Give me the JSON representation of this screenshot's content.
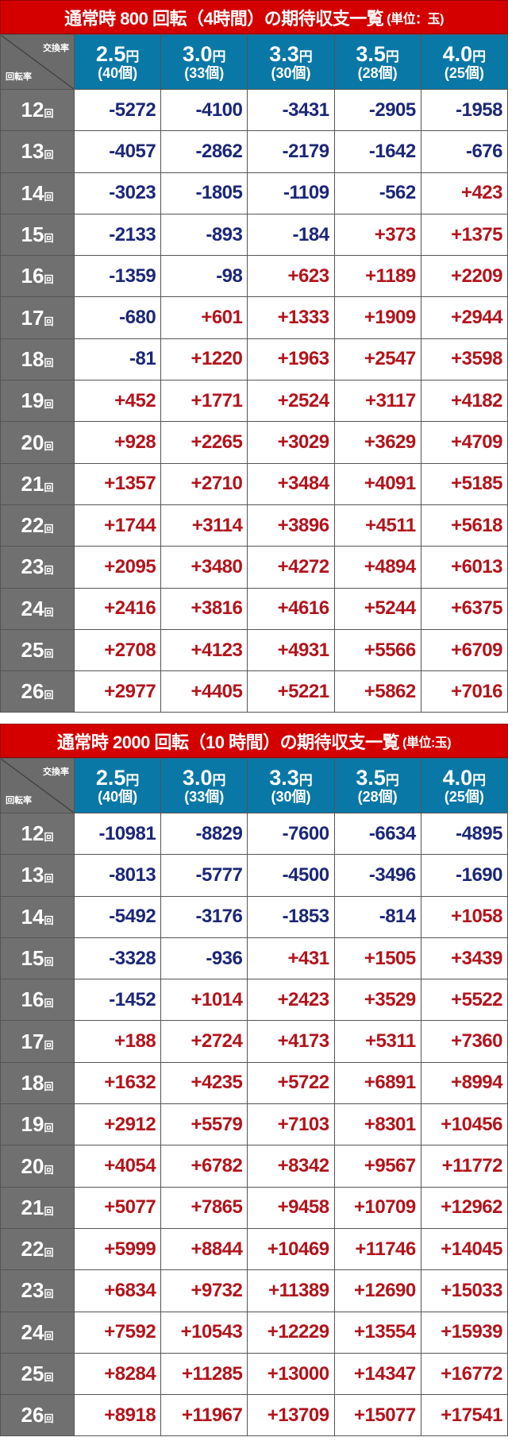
{
  "colors": {
    "title_bg": "#d40000",
    "header_bg": "#0a78a6",
    "row_label_bg": "#707070",
    "negative": "#1c2777",
    "positive": "#b3141c"
  },
  "header": {
    "corner_top": "交換率",
    "corner_bottom": "回転率",
    "yen": "円",
    "rates": [
      {
        "rate": "2.5",
        "balls": "(40個)"
      },
      {
        "rate": "3.0",
        "balls": "(33個)"
      },
      {
        "rate": "3.3",
        "balls": "(30個)"
      },
      {
        "rate": "3.5",
        "balls": "(28個)"
      },
      {
        "rate": "4.0",
        "balls": "(25個)"
      }
    ],
    "row_suffix": "回"
  },
  "tables": [
    {
      "title": "通常時 800 回転（4時間）の期待収支一覧",
      "unit": "(単位：玉)",
      "rows": [
        {
          "label": "12",
          "values": [
            "-5272",
            "-4100",
            "-3431",
            "-2905",
            "-1958"
          ]
        },
        {
          "label": "13",
          "values": [
            "-4057",
            "-2862",
            "-2179",
            "-1642",
            "-676"
          ]
        },
        {
          "label": "14",
          "values": [
            "-3023",
            "-1805",
            "-1109",
            "-562",
            "+423"
          ]
        },
        {
          "label": "15",
          "values": [
            "-2133",
            "-893",
            "-184",
            "+373",
            "+1375"
          ]
        },
        {
          "label": "16",
          "values": [
            "-1359",
            "-98",
            "+623",
            "+1189",
            "+2209"
          ]
        },
        {
          "label": "17",
          "values": [
            "-680",
            "+601",
            "+1333",
            "+1909",
            "+2944"
          ]
        },
        {
          "label": "18",
          "values": [
            "-81",
            "+1220",
            "+1963",
            "+2547",
            "+3598"
          ]
        },
        {
          "label": "19",
          "values": [
            "+452",
            "+1771",
            "+2524",
            "+3117",
            "+4182"
          ]
        },
        {
          "label": "20",
          "values": [
            "+928",
            "+2265",
            "+3029",
            "+3629",
            "+4709"
          ]
        },
        {
          "label": "21",
          "values": [
            "+1357",
            "+2710",
            "+3484",
            "+4091",
            "+5185"
          ]
        },
        {
          "label": "22",
          "values": [
            "+1744",
            "+3114",
            "+3896",
            "+4511",
            "+5618"
          ]
        },
        {
          "label": "23",
          "values": [
            "+2095",
            "+3480",
            "+4272",
            "+4894",
            "+6013"
          ]
        },
        {
          "label": "24",
          "values": [
            "+2416",
            "+3816",
            "+4616",
            "+5244",
            "+6375"
          ]
        },
        {
          "label": "25",
          "values": [
            "+2708",
            "+4123",
            "+4931",
            "+5566",
            "+6709"
          ]
        },
        {
          "label": "26",
          "values": [
            "+2977",
            "+4405",
            "+5221",
            "+5862",
            "+7016"
          ]
        }
      ]
    },
    {
      "title": "通常時 2000 回転（10 時間）の期待収支一覧",
      "unit": "(単位:玉)",
      "rows": [
        {
          "label": "12",
          "values": [
            "-10981",
            "-8829",
            "-7600",
            "-6634",
            "-4895"
          ]
        },
        {
          "label": "13",
          "values": [
            "-8013",
            "-5777",
            "-4500",
            "-3496",
            "-1690"
          ]
        },
        {
          "label": "14",
          "values": [
            "-5492",
            "-3176",
            "-1853",
            "-814",
            "+1058"
          ]
        },
        {
          "label": "15",
          "values": [
            "-3328",
            "-936",
            "+431",
            "+1505",
            "+3439"
          ]
        },
        {
          "label": "16",
          "values": [
            "-1452",
            "+1014",
            "+2423",
            "+3529",
            "+5522"
          ]
        },
        {
          "label": "17",
          "values": [
            "+188",
            "+2724",
            "+4173",
            "+5311",
            "+7360"
          ]
        },
        {
          "label": "18",
          "values": [
            "+1632",
            "+4235",
            "+5722",
            "+6891",
            "+8994"
          ]
        },
        {
          "label": "19",
          "values": [
            "+2912",
            "+5579",
            "+7103",
            "+8301",
            "+10456"
          ]
        },
        {
          "label": "20",
          "values": [
            "+4054",
            "+6782",
            "+8342",
            "+9567",
            "+11772"
          ]
        },
        {
          "label": "21",
          "values": [
            "+5077",
            "+7865",
            "+9458",
            "+10709",
            "+12962"
          ]
        },
        {
          "label": "22",
          "values": [
            "+5999",
            "+8844",
            "+10469",
            "+11746",
            "+14045"
          ]
        },
        {
          "label": "23",
          "values": [
            "+6834",
            "+9732",
            "+11389",
            "+12690",
            "+15033"
          ]
        },
        {
          "label": "24",
          "values": [
            "+7592",
            "+10543",
            "+12229",
            "+13554",
            "+15939"
          ]
        },
        {
          "label": "25",
          "values": [
            "+8284",
            "+11285",
            "+13000",
            "+14347",
            "+16772"
          ]
        },
        {
          "label": "26",
          "values": [
            "+8918",
            "+11967",
            "+13709",
            "+15077",
            "+17541"
          ]
        }
      ]
    }
  ]
}
